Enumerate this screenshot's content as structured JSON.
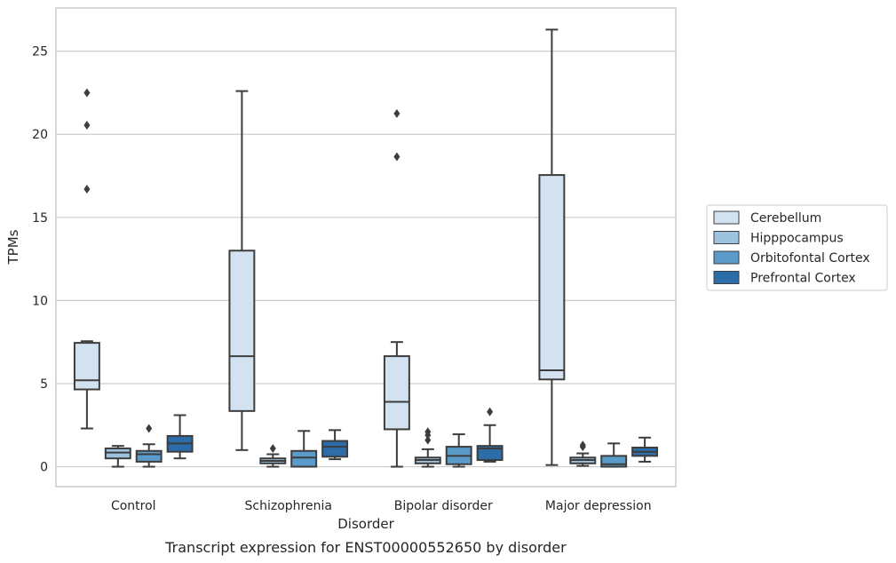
{
  "chart_data": {
    "type": "box",
    "caption": "Transcript expression for ENST00000552650 by disorder",
    "xlabel": "Disorder",
    "ylabel": "TPMs",
    "ylim": [
      -1.2,
      27.6
    ],
    "yticks": [
      0,
      5,
      10,
      15,
      20,
      25
    ],
    "grid": "horizontal",
    "legend_position": "right",
    "categories": [
      "Control",
      "Schizophrenia",
      "Bipolar disorder",
      "Major depression"
    ],
    "series": [
      {
        "name": "Cerebellum",
        "color": "#d3e2f1",
        "boxes": [
          {
            "whislo": 2.3,
            "q1": 4.65,
            "med": 5.2,
            "q3": 7.45,
            "whishi": 7.55,
            "fliers": [
              16.7,
              20.55,
              22.5
            ]
          },
          {
            "whislo": 1.0,
            "q1": 3.35,
            "med": 6.65,
            "q3": 13.0,
            "whishi": 22.6,
            "fliers": []
          },
          {
            "whislo": 0.0,
            "q1": 2.25,
            "med": 3.9,
            "q3": 6.65,
            "whishi": 7.5,
            "fliers": [
              18.65,
              21.25
            ]
          },
          {
            "whislo": 0.1,
            "q1": 5.25,
            "med": 5.8,
            "q3": 17.55,
            "whishi": 26.3,
            "fliers": []
          }
        ]
      },
      {
        "name": "Hipppocampus",
        "color": "#9dc3de",
        "boxes": [
          {
            "whislo": 0.0,
            "q1": 0.5,
            "med": 0.85,
            "q3": 1.1,
            "whishi": 1.25,
            "fliers": []
          },
          {
            "whislo": 0.0,
            "q1": 0.2,
            "med": 0.35,
            "q3": 0.5,
            "whishi": 0.75,
            "fliers": [
              1.1
            ]
          },
          {
            "whislo": 0.0,
            "q1": 0.2,
            "med": 0.4,
            "q3": 0.55,
            "whishi": 1.05,
            "fliers": [
              1.6,
              1.9,
              2.1
            ]
          },
          {
            "whislo": 0.05,
            "q1": 0.2,
            "med": 0.4,
            "q3": 0.55,
            "whishi": 0.8,
            "fliers": [
              1.2,
              1.3
            ]
          }
        ]
      },
      {
        "name": "Orbitofontal Cortex",
        "color": "#5b9bc9",
        "boxes": [
          {
            "whislo": 0.0,
            "q1": 0.3,
            "med": 0.75,
            "q3": 0.95,
            "whishi": 1.35,
            "fliers": [
              2.3
            ]
          },
          {
            "whislo": 0.0,
            "q1": 0.0,
            "med": 0.55,
            "q3": 0.95,
            "whishi": 2.15,
            "fliers": []
          },
          {
            "whislo": 0.0,
            "q1": 0.15,
            "med": 0.65,
            "q3": 1.2,
            "whishi": 1.95,
            "fliers": []
          },
          {
            "whislo": 0.0,
            "q1": 0.0,
            "med": 0.15,
            "q3": 0.65,
            "whishi": 1.4,
            "fliers": []
          }
        ]
      },
      {
        "name": "Prefrontal Cortex",
        "color": "#2b6ca9",
        "boxes": [
          {
            "whislo": 0.5,
            "q1": 0.9,
            "med": 1.4,
            "q3": 1.85,
            "whishi": 3.1,
            "fliers": []
          },
          {
            "whislo": 0.45,
            "q1": 0.6,
            "med": 1.2,
            "q3": 1.55,
            "whishi": 2.2,
            "fliers": []
          },
          {
            "whislo": 0.3,
            "q1": 0.4,
            "med": 1.1,
            "q3": 1.25,
            "whishi": 2.5,
            "fliers": [
              3.3
            ]
          },
          {
            "whislo": 0.3,
            "q1": 0.65,
            "med": 0.9,
            "q3": 1.15,
            "whishi": 1.75,
            "fliers": []
          }
        ]
      }
    ]
  }
}
